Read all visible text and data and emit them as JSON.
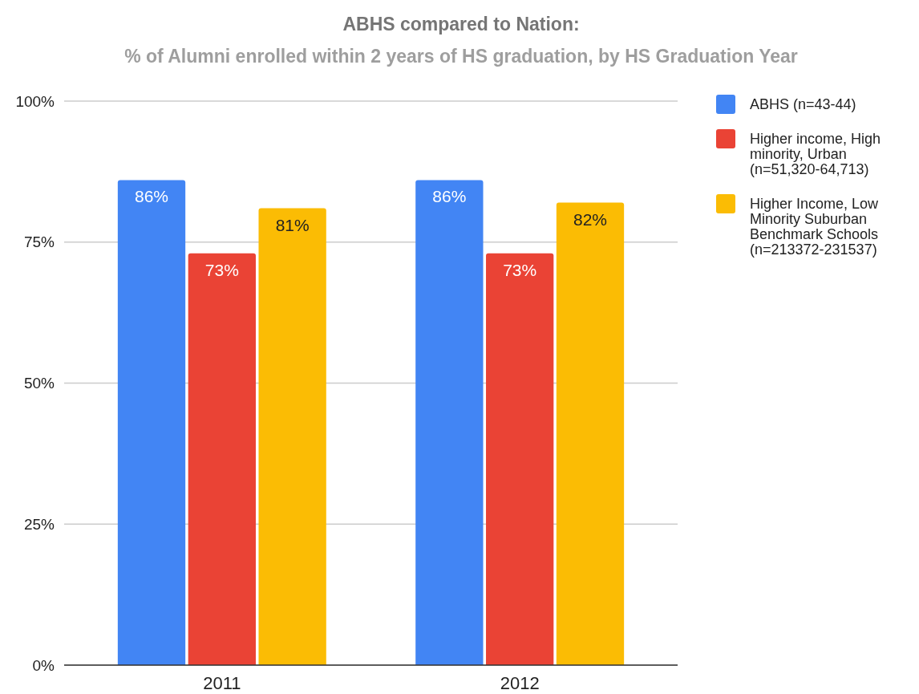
{
  "chart_data": {
    "type": "bar",
    "title": "ABHS compared to Nation:",
    "subtitle": "% of Alumni enrolled within 2 years of HS graduation, by HS Graduation Year",
    "categories": [
      "2011",
      "2012"
    ],
    "series": [
      {
        "name": "ABHS (n=43-44)",
        "color": "#4285f4",
        "values": [
          86,
          86
        ],
        "value_labels": [
          "86%",
          "86%"
        ]
      },
      {
        "name": "Higher income, High minority, Urban (n=51,320-64,713)",
        "color": "#ea4335",
        "values": [
          73,
          73
        ],
        "value_labels": [
          "73%",
          "73%"
        ]
      },
      {
        "name": "Higher Income, Low Minority Suburban Benchmark Schools (n=213372-231537)",
        "color": "#fbbc04",
        "values": [
          81,
          82
        ],
        "value_labels": [
          "81%",
          "82%"
        ]
      }
    ],
    "ylim": [
      0,
      100
    ],
    "yticks": [
      {
        "value": 0,
        "label": "0%"
      },
      {
        "value": 25,
        "label": "25%"
      },
      {
        "value": 50,
        "label": "50%"
      },
      {
        "value": 75,
        "label": "75%"
      },
      {
        "value": 100,
        "label": "100%"
      }
    ],
    "grid": "y",
    "legend": "right"
  }
}
